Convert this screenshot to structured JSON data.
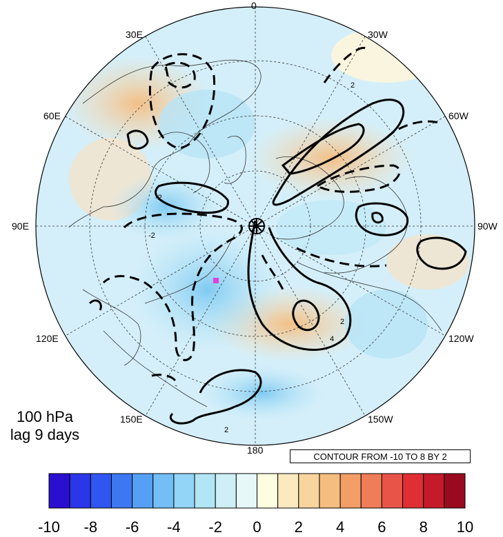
{
  "map": {
    "projection": "north-polar-stereographic",
    "longitude_labels": [
      {
        "text": "0",
        "name": "lon-label-0"
      },
      {
        "text": "30W",
        "name": "lon-label-30w"
      },
      {
        "text": "60W",
        "name": "lon-label-60w"
      },
      {
        "text": "90W",
        "name": "lon-label-90w"
      },
      {
        "text": "120W",
        "name": "lon-label-120w"
      },
      {
        "text": "150W",
        "name": "lon-label-150w"
      },
      {
        "text": "180",
        "name": "lon-label-180"
      },
      {
        "text": "150E",
        "name": "lon-label-150e"
      },
      {
        "text": "120E",
        "name": "lon-label-120e"
      },
      {
        "text": "90E",
        "name": "lon-label-90e"
      },
      {
        "text": "60E",
        "name": "lon-label-60e"
      },
      {
        "text": "30E",
        "name": "lon-label-30e"
      }
    ],
    "contour_labels": [
      "-2",
      "2",
      "4"
    ],
    "marker_color": "#e040e0"
  },
  "level_label": {
    "line1": "100 hPa",
    "line2": "lag 9 days"
  },
  "contour_info": "CONTOUR FROM -10 TO 8 BY 2",
  "colorbar": {
    "colors": [
      "#2a0fd1",
      "#2a36e8",
      "#2f56f0",
      "#3d78f2",
      "#55a0f4",
      "#72bef5",
      "#92d5f6",
      "#b2e6f5",
      "#cdeff5",
      "#e6f8f8",
      "#fdfde0",
      "#fbe9c0",
      "#f8d59c",
      "#f5bd7e",
      "#f29e66",
      "#ee7d58",
      "#e95448",
      "#df2f34",
      "#c51a2a",
      "#9a0a1e"
    ],
    "tick_labels": [
      "-10",
      "-8",
      "-6",
      "-4",
      "-2",
      "0",
      "2",
      "4",
      "6",
      "8",
      "10"
    ]
  }
}
